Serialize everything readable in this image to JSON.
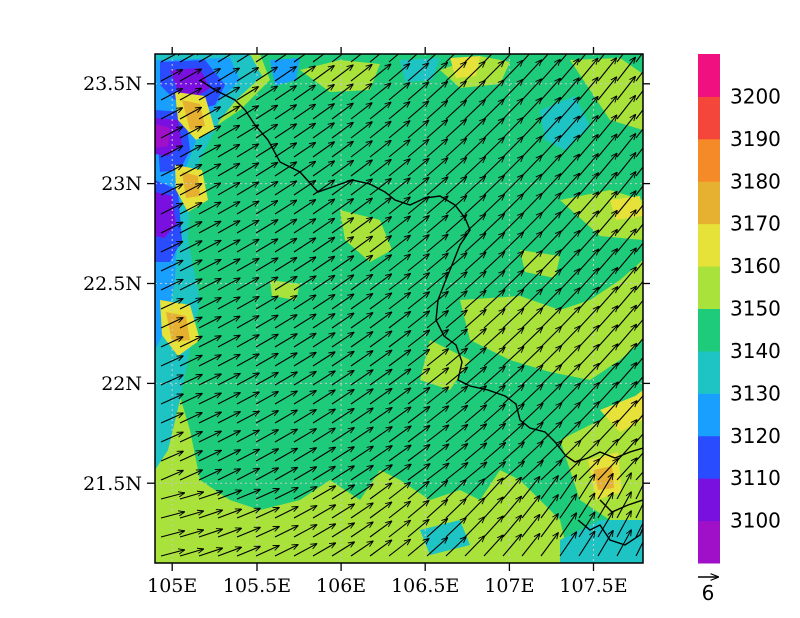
{
  "chart_data": {
    "type": "heatmap",
    "x_ticks": [
      "105E",
      "105.5E",
      "106E",
      "106.5E",
      "107E",
      "107.5E"
    ],
    "y_ticks": [
      "21.5N",
      "22N",
      "22.5N",
      "23N",
      "23.5N"
    ],
    "x_tick_values": [
      105.0,
      105.5,
      106.0,
      106.5,
      107.0,
      107.5
    ],
    "y_tick_values": [
      21.5,
      22.0,
      22.5,
      23.0,
      23.5
    ],
    "xlim": [
      104.9,
      107.8
    ],
    "ylim": [
      21.1,
      23.65
    ],
    "grid": true,
    "colorbar": {
      "labels": [
        "3100",
        "3110",
        "3120",
        "3130",
        "3140",
        "3150",
        "3160",
        "3170",
        "3180",
        "3190",
        "3200"
      ],
      "colors": [
        "#a010c8",
        "#7a10e0",
        "#2a4cff",
        "#19a0ff",
        "#1ec4c4",
        "#1ecb7a",
        "#a8e23a",
        "#e6e23a",
        "#e6b030",
        "#f58a28",
        "#f5463c",
        "#f0107f"
      ]
    },
    "field_summary": "Dominant 3140-3150 (green) with 3150-3160 (lime) patches; lower values 3100-3130 along western edge near 105E; higher values 3160-3180 at isolated spots",
    "wind": {
      "direction": "southwest to northeast",
      "reference_vector_label": "6"
    }
  },
  "colors": {
    "background": "#ffffff",
    "axis": "#000000",
    "base_field": "#1ecb7a"
  }
}
